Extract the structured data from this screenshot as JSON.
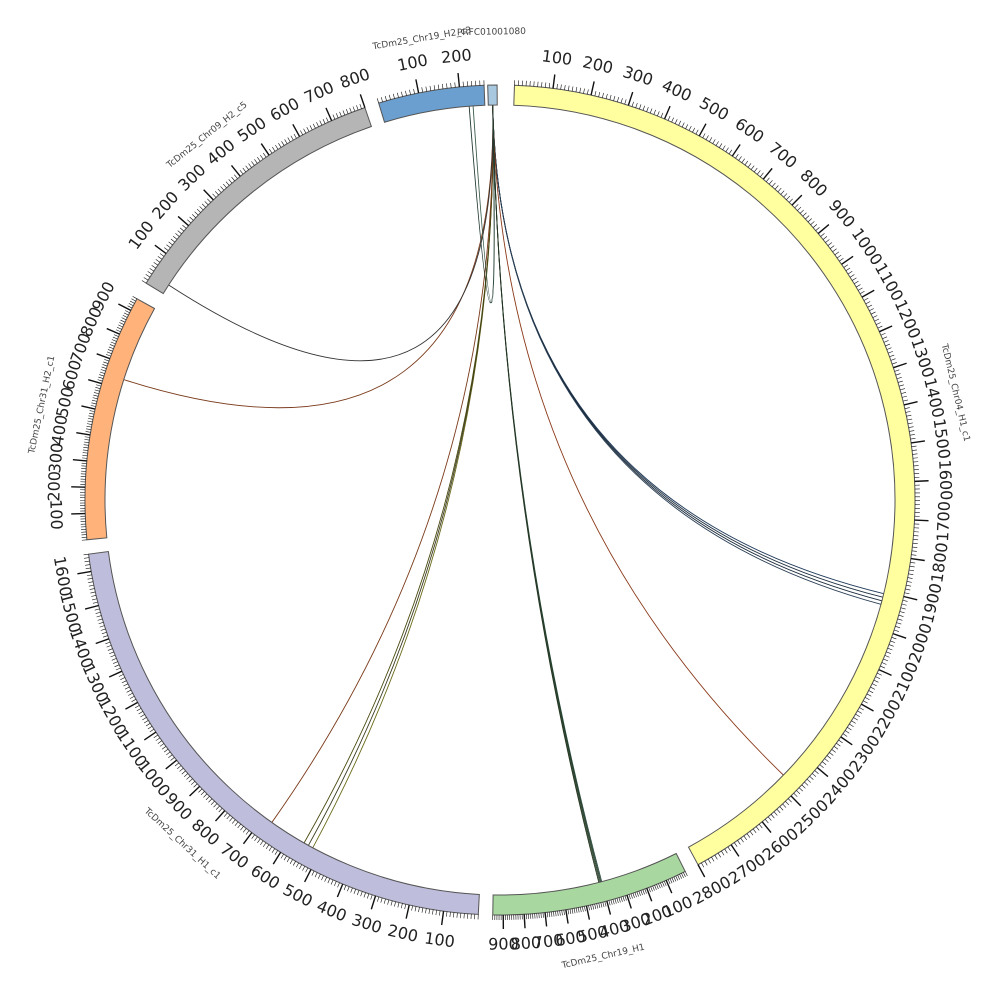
{
  "diagram": {
    "type": "circos",
    "segments": [
      {
        "id": "chr04",
        "name": "TcDm25_Chr04_H1_c1",
        "length": 2800,
        "color": "#ffffa0",
        "label_every": 100
      },
      {
        "id": "chr19h1",
        "name": "TcDm25_Chr19_H1",
        "length": 950,
        "color": "#a8d8a0",
        "label_every": 100
      },
      {
        "id": "chr31h1",
        "name": "TcDm25_Chr31_H1_c1",
        "length": 1650,
        "color": "#bebedc",
        "label_every": 100
      },
      {
        "id": "chr31h2",
        "name": "TcDm25_Chr31_H2_c1",
        "length": 950,
        "color": "#ffb27a",
        "label_every": 100
      },
      {
        "id": "chr09h2",
        "name": "TcDm25_Chr09_H2_c5",
        "length": 800,
        "color": "#b5b5b5",
        "label_every": 100
      },
      {
        "id": "chr19h2",
        "name": "TcDm25_Chr19_H2_c3",
        "length": 260,
        "color": "#6a9fd0",
        "label_every": 100
      },
      {
        "id": "prfc",
        "name": "PRFC01001080",
        "length": 12,
        "color": "#a8c8e0",
        "label_every": 0
      }
    ],
    "links": [
      {
        "from": "prfc",
        "to": "chr04",
        "at": 1905,
        "color": "#1f3a5a"
      },
      {
        "from": "prfc",
        "to": "chr04",
        "at": 1915,
        "color": "#203040"
      },
      {
        "from": "prfc",
        "to": "chr04",
        "at": 1925,
        "color": "#1a2a3a"
      },
      {
        "from": "prfc",
        "to": "chr04",
        "at": 1935,
        "color": "#2a3f55"
      },
      {
        "from": "prfc",
        "to": "chr04",
        "at": 2475,
        "color": "#8a3a1a"
      },
      {
        "from": "prfc",
        "to": "chr19h1",
        "at": 400,
        "color": "#2a4a3a"
      },
      {
        "from": "prfc",
        "to": "chr19h1",
        "at": 405,
        "color": "#1e3a30"
      },
      {
        "from": "prfc",
        "to": "chr19h1",
        "at": 410,
        "color": "#354a2a"
      },
      {
        "from": "prfc",
        "to": "chr19h1",
        "at": 415,
        "color": "#223322"
      },
      {
        "from": "prfc",
        "to": "chr31h1",
        "at": 525,
        "color": "#6a6a1a"
      },
      {
        "from": "prfc",
        "to": "chr31h1",
        "at": 540,
        "color": "#3a3a20"
      },
      {
        "from": "prfc",
        "to": "chr31h1",
        "at": 555,
        "color": "#4a4a10"
      },
      {
        "from": "prfc",
        "to": "chr31h1",
        "at": 670,
        "color": "#7a3a1a"
      },
      {
        "from": "prfc",
        "to": "chr31h2",
        "at": 640,
        "color": "#7a3a1a"
      },
      {
        "from": "prfc",
        "to": "chr09h2",
        "at": 30,
        "color": "#333333"
      },
      {
        "from": "prfc",
        "to": "chr19h2",
        "at": 230,
        "color": "#3a5a4a"
      },
      {
        "from": "prfc",
        "to": "chr19h2",
        "at": 220,
        "color": "#203a30"
      }
    ]
  }
}
